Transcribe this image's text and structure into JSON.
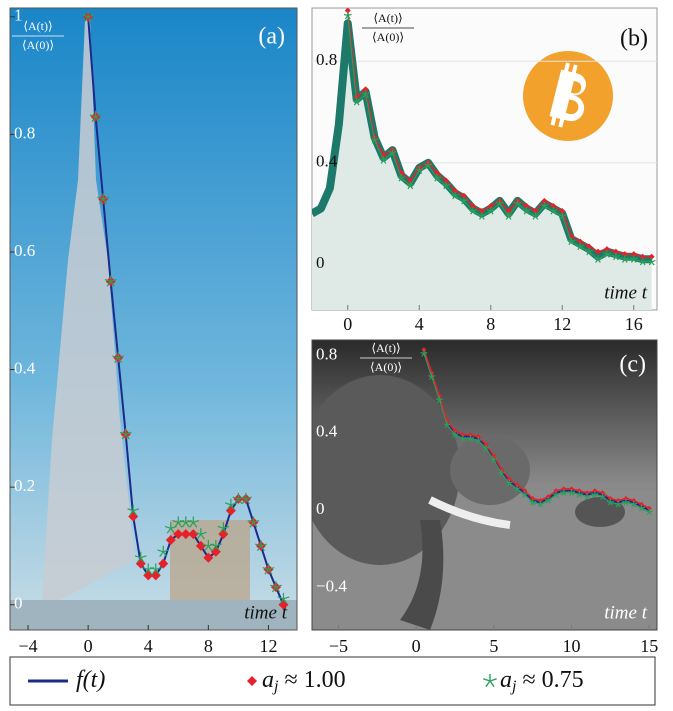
{
  "legend": [
    {
      "label": "f(t)",
      "color": "#1c2a8c",
      "marker": "line"
    },
    {
      "label": "a",
      "sub": "j",
      "suffix": "≈ 1.00",
      "color": "#e8202a",
      "marker": "diamond"
    },
    {
      "label": "a",
      "sub": "j",
      "suffix": "≈ 0.75",
      "color": "#2aa05a",
      "marker": "star"
    }
  ],
  "chart_data": [
    {
      "type": "line",
      "panel_label": "(a)",
      "y_label_numerator": "⟨A(t)⟩",
      "y_label_denominator": "⟨A(0)⟩",
      "x_label": "time t",
      "x": [
        0,
        0.5,
        1,
        1.5,
        2,
        2.5,
        3,
        3.5,
        4,
        4.5,
        5,
        5.5,
        6,
        6.5,
        7,
        7.5,
        8,
        8.5,
        9,
        9.5,
        10,
        10.5,
        11,
        11.5,
        12,
        12.5,
        13
      ],
      "series": [
        {
          "color": "#1c2a8c",
          "marker": "none",
          "line_width": 2,
          "values": [
            1.0,
            0.83,
            0.69,
            0.55,
            0.42,
            0.29,
            0.15,
            0.07,
            0.05,
            0.05,
            0.07,
            0.11,
            0.12,
            0.12,
            0.12,
            0.1,
            0.08,
            0.09,
            0.12,
            0.16,
            0.18,
            0.18,
            0.14,
            0.1,
            0.06,
            0.03,
            0.0
          ]
        },
        {
          "color": "#e8202a",
          "marker": "diamond",
          "line_width": 0,
          "values": [
            1.0,
            0.83,
            0.69,
            0.55,
            0.42,
            0.29,
            0.15,
            0.07,
            0.05,
            0.05,
            0.07,
            0.11,
            0.12,
            0.12,
            0.12,
            0.1,
            0.08,
            0.09,
            0.12,
            0.16,
            0.18,
            0.18,
            0.14,
            0.1,
            0.06,
            0.03,
            0.0
          ]
        },
        {
          "color": "#2aa05a",
          "marker": "star",
          "line_width": 0,
          "values": [
            1.0,
            0.83,
            0.69,
            0.55,
            0.42,
            0.29,
            0.16,
            0.08,
            0.06,
            0.06,
            0.09,
            0.13,
            0.14,
            0.14,
            0.14,
            0.12,
            0.1,
            0.1,
            0.13,
            0.17,
            0.18,
            0.18,
            0.14,
            0.1,
            0.06,
            0.03,
            0.01
          ]
        }
      ],
      "xlim": [
        -5.2,
        13.9
      ],
      "ylim": [
        -0.043,
        1.015
      ],
      "xticks": [
        {
          "value": -4,
          "label": "−4"
        },
        0,
        4,
        8,
        12
      ],
      "yticks": [
        0,
        0.2,
        0.4,
        0.6,
        0.8,
        1
      ],
      "grid": false
    },
    {
      "type": "line",
      "panel_label": "(b)",
      "y_label_numerator": "⟨A(t)⟩",
      "y_label_denominator": "⟨A(0)⟩",
      "x_label": "time t",
      "x": [
        -2,
        -1.5,
        -1,
        -0.5,
        0,
        0.5,
        1,
        1.5,
        2,
        2.5,
        3,
        3.5,
        4,
        4.5,
        5,
        5.5,
        6,
        6.5,
        7,
        7.5,
        8,
        8.5,
        9,
        9.5,
        10,
        10.5,
        11,
        11.5,
        12,
        12.5,
        13,
        13.5,
        14,
        14.5,
        15,
        15.5,
        16,
        16.5,
        17
      ],
      "series": [
        {
          "color": "#1d7a6a",
          "marker": "none",
          "line_width": 8,
          "area": "#dfe9e6",
          "values": [
            0.2,
            0.22,
            0.3,
            0.55,
            0.95,
            0.65,
            0.68,
            0.5,
            0.42,
            0.45,
            0.35,
            0.32,
            0.38,
            0.4,
            0.35,
            0.32,
            0.28,
            0.26,
            0.22,
            0.2,
            0.22,
            0.25,
            0.2,
            0.25,
            0.22,
            0.2,
            0.24,
            0.22,
            0.2,
            0.1,
            0.08,
            0.06,
            0.03,
            0.05,
            0.04,
            0.03,
            0.03,
            0.02,
            0.02
          ]
        },
        {
          "color": "#e8202a",
          "marker": "diamond",
          "line_width": 1.5,
          "values": [
            null,
            null,
            null,
            null,
            1.0,
            0.66,
            0.69,
            0.5,
            0.43,
            0.45,
            0.36,
            0.33,
            0.38,
            0.4,
            0.36,
            0.33,
            0.29,
            0.27,
            0.23,
            0.21,
            0.23,
            0.25,
            0.21,
            0.25,
            0.23,
            0.21,
            0.25,
            0.23,
            0.21,
            0.11,
            0.09,
            0.07,
            0.05,
            0.06,
            0.05,
            0.04,
            0.04,
            0.03,
            0.03
          ]
        },
        {
          "color": "#2aa05a",
          "marker": "star",
          "line_width": 1,
          "values": [
            null,
            null,
            null,
            null,
            0.98,
            0.64,
            0.67,
            0.49,
            0.41,
            0.44,
            0.34,
            0.31,
            0.37,
            0.39,
            0.34,
            0.31,
            0.27,
            0.25,
            0.21,
            0.19,
            0.21,
            0.24,
            0.19,
            0.24,
            0.21,
            0.19,
            0.23,
            0.21,
            0.19,
            0.09,
            0.07,
            0.05,
            0.02,
            0.04,
            0.03,
            0.02,
            0.02,
            0.01,
            0.01
          ]
        }
      ],
      "xlim": [
        -2,
        17.3
      ],
      "ylim": [
        -0.18,
        1.01
      ],
      "xticks": [
        0,
        4,
        8,
        12,
        16
      ],
      "yticks": [
        0,
        0.4,
        0.8
      ],
      "grid": true
    },
    {
      "type": "line",
      "panel_label": "(c)",
      "y_label_numerator": "⟨A(t)⟩",
      "y_label_denominator": "⟨A(0)⟩",
      "x_label": "time t",
      "x": [
        0.5,
        1,
        1.5,
        2,
        2.5,
        3,
        3.5,
        4,
        4.5,
        5,
        5.5,
        6,
        6.5,
        7,
        7.5,
        8,
        8.5,
        9,
        9.5,
        10,
        10.5,
        11,
        11.5,
        12,
        12.5,
        13,
        13.5,
        14,
        14.5,
        15
      ],
      "series": [
        {
          "color": "#1c2a8c",
          "marker": "none",
          "line_width": 2,
          "values": [
            0.82,
            0.7,
            0.58,
            0.45,
            0.4,
            0.38,
            0.38,
            0.37,
            0.33,
            0.27,
            0.2,
            0.15,
            0.12,
            0.09,
            0.05,
            0.04,
            0.06,
            0.09,
            0.1,
            0.1,
            0.09,
            0.08,
            0.09,
            0.08,
            0.05,
            0.04,
            0.05,
            0.04,
            0.02,
            0.0
          ]
        },
        {
          "color": "#e8202a",
          "marker": "diamond",
          "line_width": 1.5,
          "values": [
            0.83,
            0.71,
            0.59,
            0.46,
            0.41,
            0.39,
            0.39,
            0.38,
            0.34,
            0.28,
            0.21,
            0.16,
            0.13,
            0.1,
            0.06,
            0.05,
            0.07,
            0.1,
            0.11,
            0.11,
            0.1,
            0.09,
            0.1,
            0.09,
            0.06,
            0.05,
            0.06,
            0.05,
            0.03,
            0.01
          ]
        },
        {
          "color": "#2aa05a",
          "marker": "star",
          "line_width": 1,
          "values": [
            0.81,
            0.69,
            0.57,
            0.44,
            0.39,
            0.37,
            0.37,
            0.36,
            0.32,
            0.26,
            0.19,
            0.14,
            0.11,
            0.08,
            0.04,
            0.03,
            0.05,
            0.08,
            0.09,
            0.09,
            0.08,
            0.07,
            0.08,
            0.07,
            0.04,
            0.03,
            0.04,
            0.03,
            0.01,
            -0.01
          ]
        }
      ],
      "xlim": [
        -6.7,
        15.5
      ],
      "ylim": [
        -0.62,
        0.88
      ],
      "xticks": [
        {
          "value": -5,
          "label": "−5"
        },
        0,
        5,
        10,
        15
      ],
      "yticks": [
        {
          "value": -0.4,
          "label": "−0.4"
        },
        0,
        0.4,
        0.8
      ],
      "grid": false
    }
  ]
}
